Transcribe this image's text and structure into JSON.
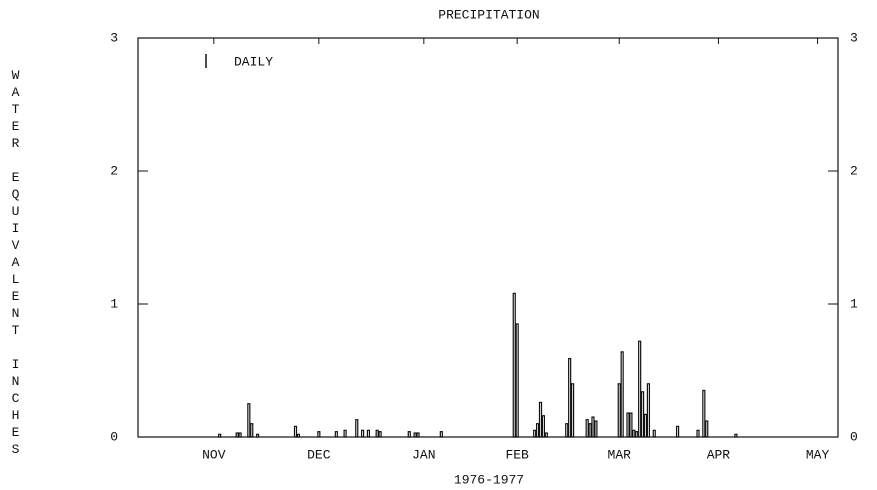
{
  "chart_data": {
    "type": "bar",
    "title": "PRECIPITATION",
    "xlabel": "1976-1977",
    "ylabel": "WATER EQUIVALENT INCHES",
    "legend_label": "DAILY",
    "color": "#111111",
    "xlim": [
      0,
      240
    ],
    "xticks": [
      {
        "value": 26,
        "label": "NOV"
      },
      {
        "value": 62,
        "label": "DEC"
      },
      {
        "value": 98,
        "label": "JAN"
      },
      {
        "value": 130,
        "label": "FEB"
      },
      {
        "value": 165,
        "label": "MAR"
      },
      {
        "value": 199,
        "label": "APR"
      },
      {
        "value": 233,
        "label": "MAY"
      }
    ],
    "ylim": [
      0,
      3
    ],
    "yticks": [
      0,
      1,
      2,
      3
    ],
    "y2lim": [
      0,
      3
    ],
    "y2ticks": [
      0,
      1,
      2,
      3
    ],
    "x": [
      28,
      34,
      35,
      38,
      39,
      41,
      54,
      55,
      62,
      68,
      71,
      75,
      77,
      79,
      82,
      83,
      93,
      95,
      96,
      104,
      129,
      130,
      136,
      137,
      138,
      139,
      140,
      147,
      148,
      149,
      154,
      155,
      156,
      157,
      165,
      166,
      168,
      169,
      170,
      171,
      172,
      173,
      174,
      175,
      177,
      185,
      192,
      194,
      195,
      205
    ],
    "values": [
      0.02,
      0.03,
      0.03,
      0.25,
      0.1,
      0.02,
      0.08,
      0.02,
      0.04,
      0.04,
      0.05,
      0.13,
      0.05,
      0.05,
      0.05,
      0.04,
      0.04,
      0.03,
      0.03,
      0.04,
      1.08,
      0.85,
      0.05,
      0.1,
      0.26,
      0.16,
      0.03,
      0.1,
      0.59,
      0.4,
      0.13,
      0.1,
      0.15,
      0.12,
      0.4,
      0.64,
      0.18,
      0.18,
      0.05,
      0.04,
      0.72,
      0.34,
      0.17,
      0.4,
      0.05,
      0.08,
      0.05,
      0.35,
      0.12,
      0.02
    ]
  }
}
